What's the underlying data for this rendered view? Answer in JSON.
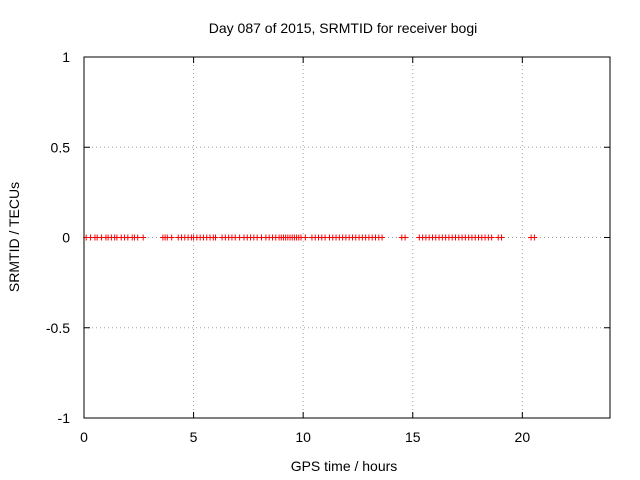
{
  "chart_data": {
    "type": "scatter",
    "title": "Day 087 of 2015, SRMTID for receiver bogi",
    "xlabel": "GPS time / hours",
    "ylabel": "SRMTID / TECUs",
    "xlim": [
      0,
      24
    ],
    "ylim": [
      -1,
      1
    ],
    "xticks": [
      0,
      5,
      10,
      15,
      20
    ],
    "xtick_labels": [
      "0",
      "5",
      "10",
      "15",
      "20"
    ],
    "yticks": [
      -1,
      -0.5,
      0,
      0.5,
      1
    ],
    "ytick_labels": [
      "-1",
      "-0.5",
      "0",
      "0.5",
      "1"
    ],
    "grid": true,
    "marker": "+",
    "series": [
      {
        "name": "SRMTID",
        "color": "#ff0000",
        "x": [
          0.1,
          0.3,
          0.5,
          0.6,
          0.8,
          1.0,
          1.1,
          1.25,
          1.4,
          1.5,
          1.7,
          1.85,
          2.0,
          2.2,
          2.3,
          2.45,
          2.7,
          3.6,
          3.7,
          3.8,
          4.0,
          4.3,
          4.45,
          4.6,
          4.75,
          4.9,
          5.0,
          5.15,
          5.3,
          5.45,
          5.6,
          5.75,
          5.9,
          6.0,
          6.3,
          6.45,
          6.6,
          6.75,
          6.9,
          7.1,
          7.3,
          7.45,
          7.6,
          7.75,
          7.9,
          8.1,
          8.3,
          8.45,
          8.6,
          8.75,
          8.9,
          9.0,
          9.1,
          9.2,
          9.3,
          9.4,
          9.5,
          9.6,
          9.7,
          9.8,
          9.9,
          10.1,
          10.4,
          10.55,
          10.7,
          10.85,
          11.0,
          11.2,
          11.35,
          11.5,
          11.65,
          11.8,
          11.95,
          12.1,
          12.25,
          12.4,
          12.55,
          12.7,
          12.85,
          13.0,
          13.15,
          13.3,
          13.45,
          13.6,
          14.5,
          14.65,
          15.3,
          15.45,
          15.6,
          15.75,
          15.9,
          16.05,
          16.2,
          16.35,
          16.5,
          16.65,
          16.8,
          16.95,
          17.1,
          17.25,
          17.4,
          17.55,
          17.7,
          17.85,
          18.0,
          18.15,
          18.3,
          18.45,
          18.6,
          18.9,
          19.05,
          20.4,
          20.55
        ],
        "y": [
          0,
          0,
          0,
          0,
          0,
          0,
          0,
          0,
          0,
          0,
          0,
          0,
          0,
          0,
          0,
          0,
          0,
          0,
          0,
          0,
          0,
          0,
          0,
          0,
          0,
          0,
          0,
          0,
          0,
          0,
          0,
          0,
          0,
          0,
          0,
          0,
          0,
          0,
          0,
          0,
          0,
          0,
          0,
          0,
          0,
          0,
          0,
          0,
          0,
          0,
          0,
          0,
          0,
          0,
          0,
          0,
          0,
          0,
          0,
          0,
          0,
          0,
          0,
          0,
          0,
          0,
          0,
          0,
          0,
          0,
          0,
          0,
          0,
          0,
          0,
          0,
          0,
          0,
          0,
          0,
          0,
          0,
          0,
          0,
          0,
          0,
          0,
          0,
          0,
          0,
          0,
          0,
          0,
          0,
          0,
          0,
          0,
          0,
          0,
          0,
          0,
          0,
          0,
          0,
          0,
          0,
          0,
          0,
          0,
          0,
          0,
          0,
          0
        ]
      }
    ]
  }
}
